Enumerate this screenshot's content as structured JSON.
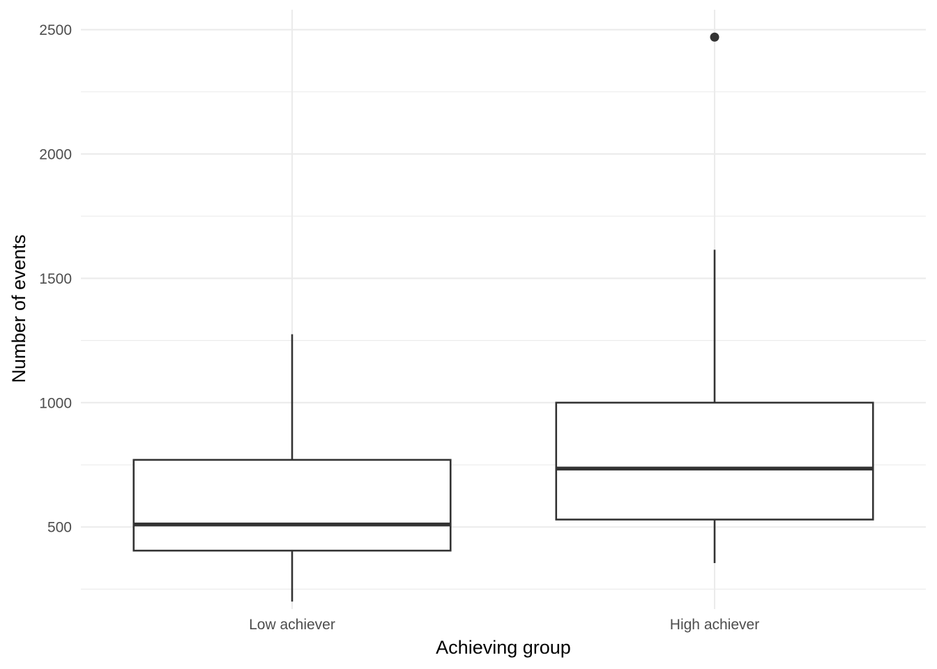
{
  "chart_data": {
    "type": "box",
    "xlabel": "Achieving group",
    "ylabel": "Number of events",
    "ylim": [
      170,
      2580
    ],
    "y_ticks": [
      500,
      1000,
      1500,
      2000,
      2500
    ],
    "y_minor_ticks": [
      250,
      750,
      1250,
      1750,
      2250
    ],
    "y_tick_labels": [
      "500",
      "1000",
      "1500",
      "2000",
      "2500"
    ],
    "categories": [
      "Low achiever",
      "High achiever"
    ],
    "boxes": [
      {
        "category": "Low achiever",
        "whisker_low": 200,
        "q1": 405,
        "median": 510,
        "q3": 770,
        "whisker_high": 1275,
        "outliers": []
      },
      {
        "category": "High achiever",
        "whisker_low": 355,
        "q1": 530,
        "median": 735,
        "q3": 1000,
        "whisker_high": 1615,
        "outliers": [
          2470
        ]
      }
    ],
    "grid": true,
    "colors": {
      "box_stroke": "#333333",
      "box_fill": "#ffffff",
      "grid": "#ebebeb",
      "tick_text": "#4d4d4d",
      "title_text": "#000000"
    }
  }
}
